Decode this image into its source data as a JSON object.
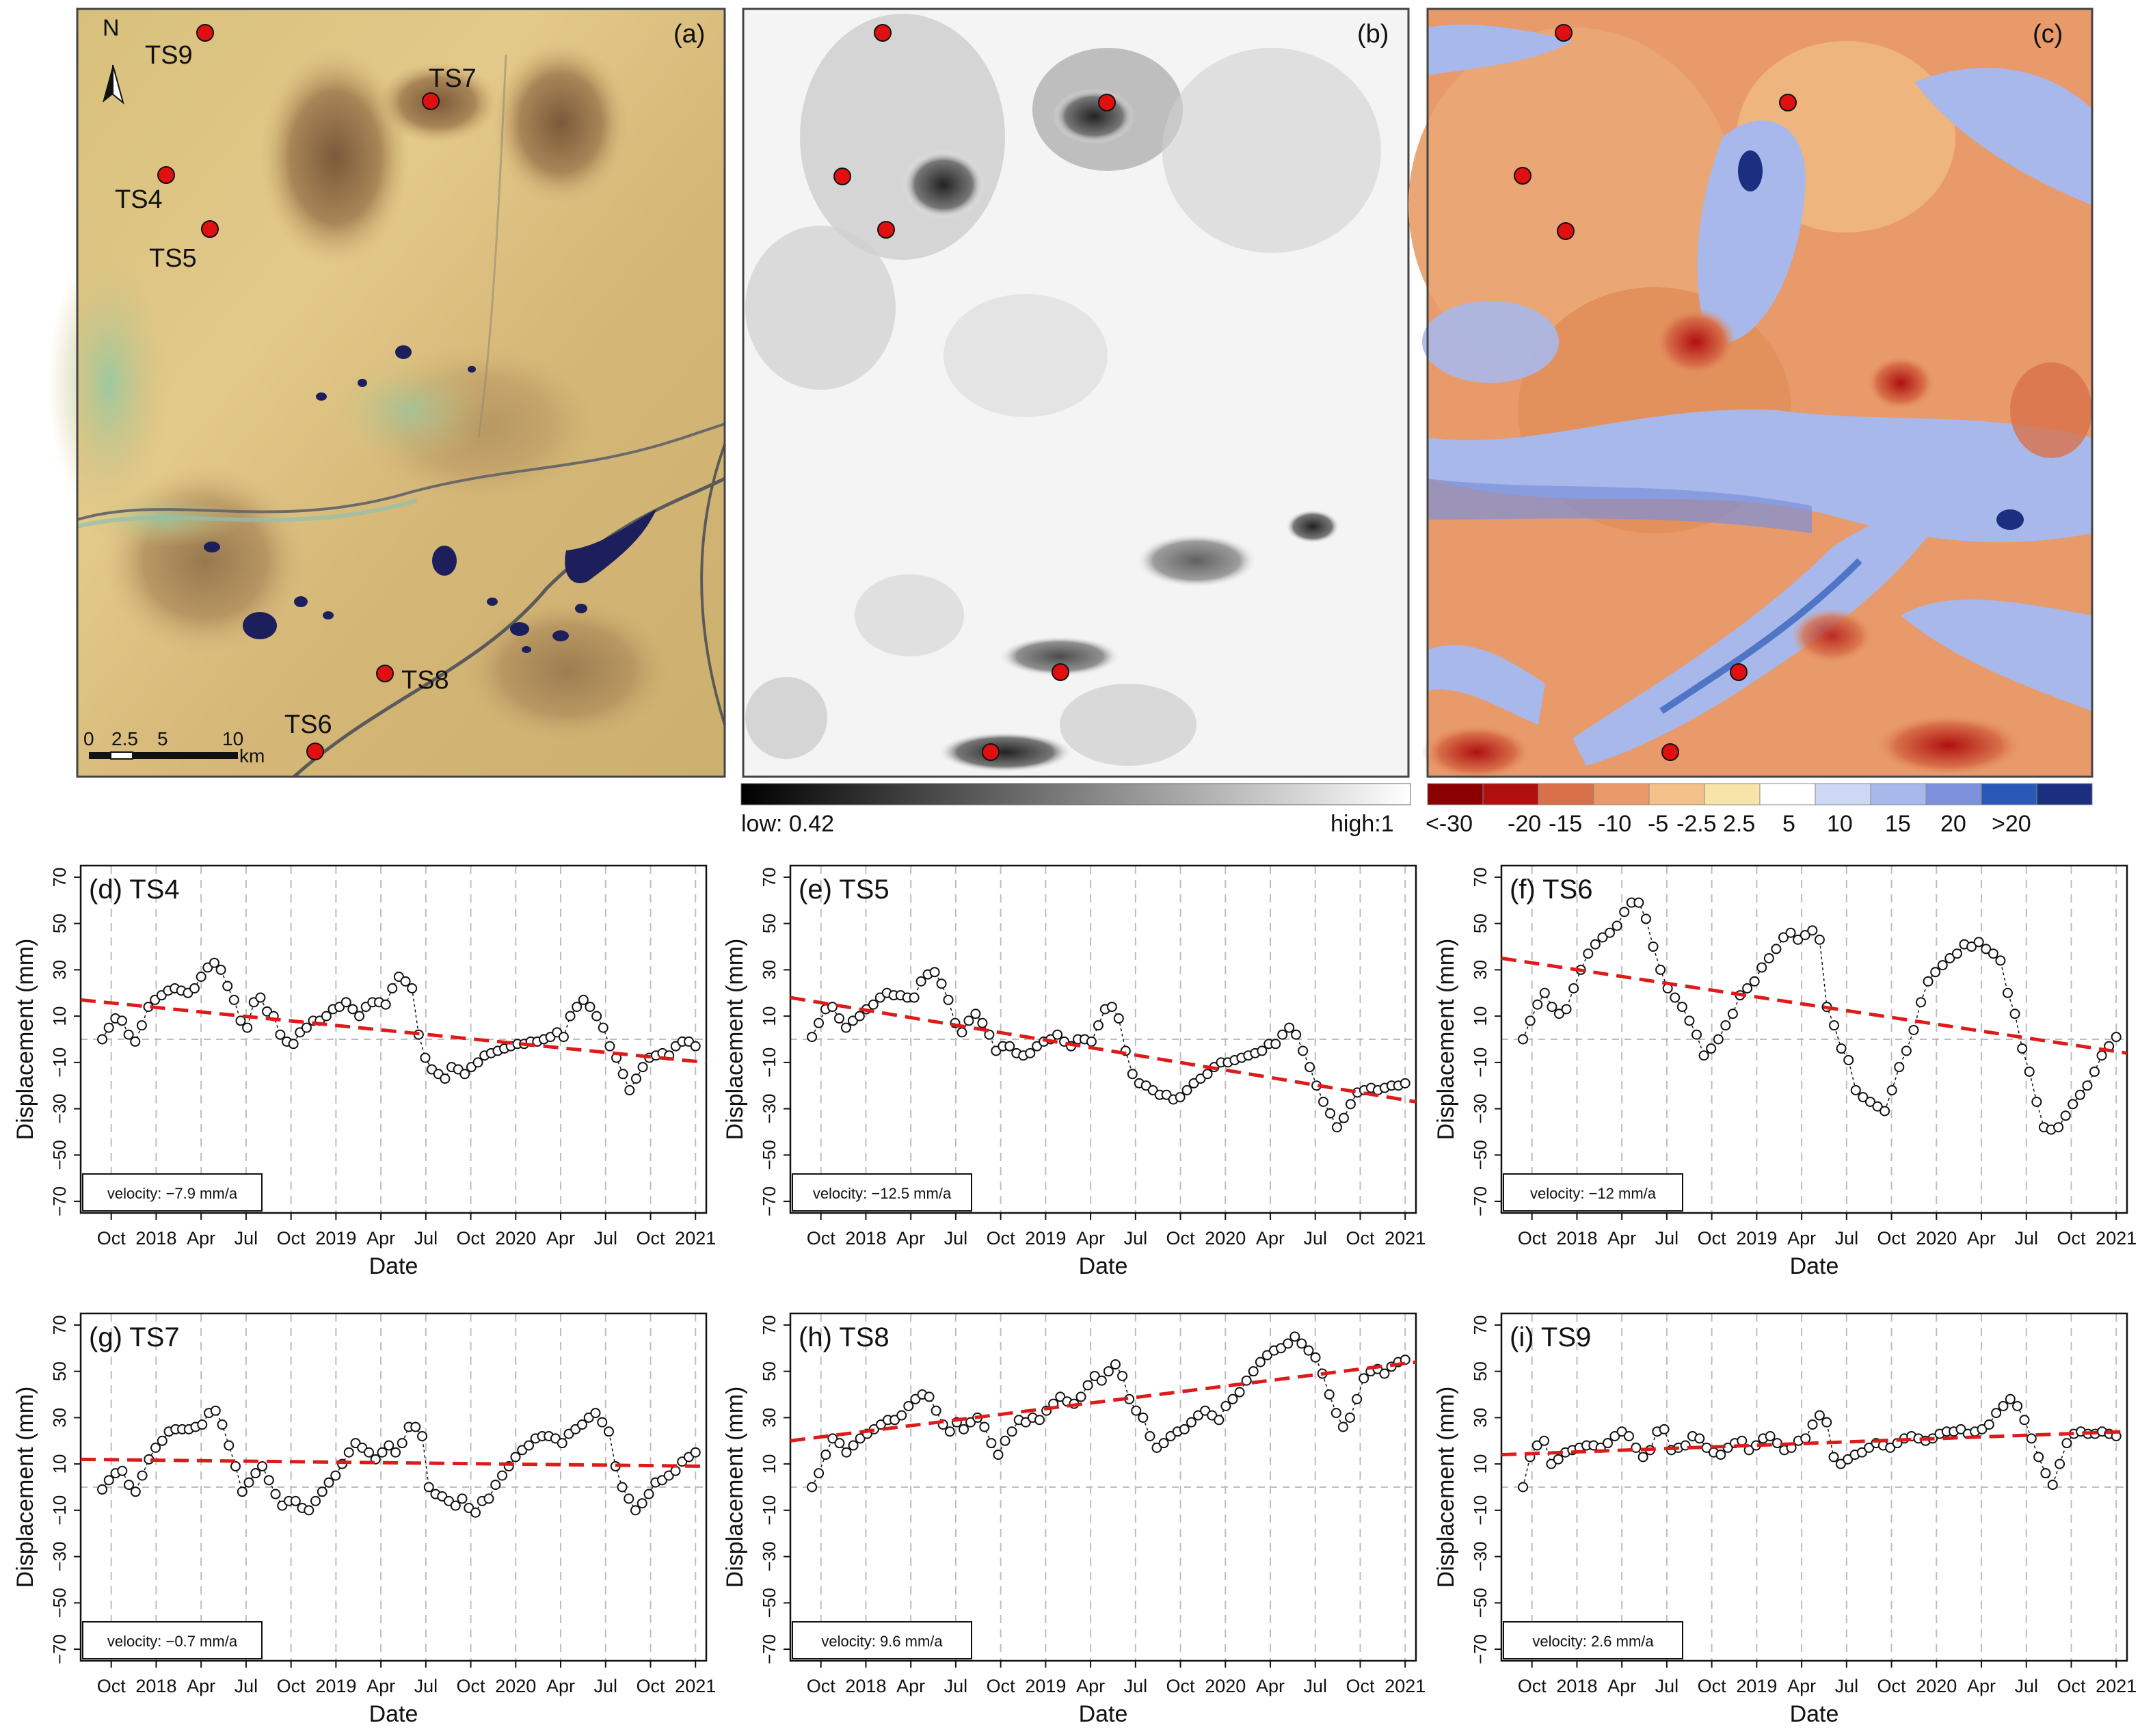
{
  "maps": {
    "a": {
      "label": "(a)",
      "north": "N",
      "scale_ticks": [
        "0",
        "2.5",
        "5",
        "10"
      ],
      "scale_unit": "km",
      "stations": [
        {
          "name": "TS9",
          "label": "TS9"
        },
        {
          "name": "TS7",
          "label": "TS7"
        },
        {
          "name": "TS4",
          "label": "TS4"
        },
        {
          "name": "TS5",
          "label": "TS5"
        },
        {
          "name": "TS8",
          "label": "TS8"
        },
        {
          "name": "TS6",
          "label": "TS6"
        }
      ]
    },
    "b": {
      "label": "(b)",
      "colorbar_low": "low: 0.42",
      "colorbar_high": "high:1"
    },
    "c": {
      "label": "(c)",
      "colorbar_labels": [
        "<-30",
        "-20",
        "-15",
        "-10",
        "-5",
        "-2.5",
        "2.5",
        "5",
        "10",
        "15",
        "20",
        ">20"
      ],
      "colorbar_colors": [
        "#8b0000",
        "#b01010",
        "#d8704a",
        "#e89a6a",
        "#f2c088",
        "#f8e4a8",
        "#ffffff",
        "#cdd8f4",
        "#a8b8ea",
        "#7c90dc",
        "#2a58b8",
        "#1a2f80"
      ]
    }
  },
  "colors": {
    "trend": "#dd1b1b",
    "marker": "#e01010",
    "water": "#1c1f5c"
  },
  "chart_data": [
    {
      "type": "scatter",
      "id": "d",
      "title": "(d) TS4",
      "velocity": "velocity: −7.9 mm/a",
      "xlabel": "Date",
      "ylabel": "Displacement (mm)",
      "x_ticks": [
        "Oct",
        "2018",
        "Apr",
        "Jul",
        "Oct",
        "2019",
        "Apr",
        "Jul",
        "Oct",
        "2020",
        "Apr",
        "Jul",
        "Oct",
        "2021"
      ],
      "y_ticks": [
        "70",
        "50",
        "30",
        "10",
        "−10",
        "−30",
        "−50",
        "−70"
      ],
      "ylim": [
        -75,
        75
      ],
      "xlim": [
        2017.58,
        2021.06
      ],
      "trend": {
        "y_start": 17,
        "y_end": -10
      },
      "values": [
        0,
        5,
        9,
        8,
        2,
        -1,
        6,
        14,
        17,
        19,
        21,
        22,
        21,
        20,
        22,
        27,
        31,
        33,
        30,
        23,
        17,
        8,
        5,
        16,
        18,
        12,
        10,
        2,
        -1,
        -2,
        3,
        5,
        8,
        8,
        10,
        13,
        14,
        16,
        13,
        10,
        14,
        16,
        16,
        15,
        22,
        27,
        25,
        22,
        2,
        -8,
        -13,
        -15,
        -17,
        -12,
        -13,
        -15,
        -12,
        -10,
        -7,
        -6,
        -5,
        -4,
        -3,
        -2,
        -2,
        -1,
        -1,
        0,
        1,
        3,
        1,
        10,
        14,
        17,
        14,
        10,
        5,
        -3,
        -8,
        -15,
        -22,
        -17,
        -12,
        -8,
        -7,
        -6,
        -7,
        -3,
        -1,
        -1,
        -3
      ]
    },
    {
      "type": "scatter",
      "id": "e",
      "title": "(e) TS5",
      "velocity": "velocity: −12.5 mm/a",
      "xlabel": "Date",
      "ylabel": "Displacement (mm)",
      "x_ticks": [
        "Oct",
        "2018",
        "Apr",
        "Jul",
        "Oct",
        "2019",
        "Apr",
        "Jul",
        "Oct",
        "2020",
        "Apr",
        "Jul",
        "Oct",
        "2021"
      ],
      "y_ticks": [
        "70",
        "50",
        "30",
        "10",
        "−10",
        "−30",
        "−50",
        "−70"
      ],
      "ylim": [
        -75,
        75
      ],
      "xlim": [
        2017.58,
        2021.06
      ],
      "trend": {
        "y_start": 18,
        "y_end": -27
      },
      "values": [
        1,
        7,
        13,
        14,
        9,
        5,
        8,
        10,
        13,
        15,
        18,
        20,
        19,
        19,
        18,
        18,
        25,
        28,
        29,
        24,
        17,
        7,
        3,
        8,
        11,
        7,
        2,
        -5,
        -3,
        -3,
        -6,
        -7,
        -6,
        -3,
        -1,
        0,
        2,
        -1,
        -3,
        0,
        0,
        -1,
        6,
        13,
        14,
        9,
        -5,
        -15,
        -19,
        -20,
        -22,
        -24,
        -24,
        -26,
        -25,
        -22,
        -19,
        -17,
        -15,
        -12,
        -10,
        -10,
        -9,
        -8,
        -7,
        -6,
        -5,
        -2,
        -2,
        2,
        5,
        2,
        -5,
        -12,
        -20,
        -27,
        -32,
        -38,
        -34,
        -28,
        -23,
        -22,
        -21,
        -22,
        -21,
        -20,
        -20,
        -19
      ]
    },
    {
      "type": "scatter",
      "id": "f",
      "title": "(f) TS6",
      "velocity": "velocity: −12 mm/a",
      "xlabel": "Date",
      "ylabel": "Displacement (mm)",
      "x_ticks": [
        "Oct",
        "2018",
        "Apr",
        "Jul",
        "Oct",
        "2019",
        "Apr",
        "Jul",
        "Oct",
        "2020",
        "Apr",
        "Jul",
        "Oct",
        "2021"
      ],
      "y_ticks": [
        "70",
        "50",
        "30",
        "10",
        "−10",
        "−30",
        "−50",
        "−70"
      ],
      "ylim": [
        -75,
        75
      ],
      "xlim": [
        2017.58,
        2021.06
      ],
      "trend": {
        "y_start": 35,
        "y_end": -6
      },
      "values": [
        0,
        8,
        15,
        20,
        14,
        11,
        13,
        22,
        30,
        37,
        41,
        44,
        46,
        49,
        55,
        59,
        59,
        52,
        40,
        30,
        22,
        18,
        14,
        8,
        2,
        -7,
        -4,
        0,
        6,
        11,
        19,
        22,
        25,
        31,
        35,
        39,
        44,
        46,
        43,
        45,
        47,
        43,
        14,
        6,
        -4,
        -9,
        -22,
        -25,
        -27,
        -29,
        -31,
        -22,
        -12,
        -5,
        4,
        16,
        25,
        29,
        32,
        35,
        37,
        41,
        40,
        42,
        39,
        37,
        34,
        20,
        11,
        -4,
        -14,
        -27,
        -38,
        -39,
        -38,
        -33,
        -28,
        -24,
        -20,
        -14,
        -7,
        -3,
        1
      ]
    },
    {
      "type": "scatter",
      "id": "g",
      "title": "(g) TS7",
      "velocity": "velocity: −0.7 mm/a",
      "xlabel": "Date",
      "ylabel": "Displacement (mm)",
      "x_ticks": [
        "Oct",
        "2018",
        "Apr",
        "Jul",
        "Oct",
        "2019",
        "Apr",
        "Jul",
        "Oct",
        "2020",
        "Apr",
        "Jul",
        "Oct",
        "2021"
      ],
      "y_ticks": [
        "70",
        "50",
        "30",
        "10",
        "−10",
        "−30",
        "−50",
        "−70"
      ],
      "ylim": [
        -75,
        75
      ],
      "xlim": [
        2017.58,
        2021.06
      ],
      "trend": {
        "y_start": 12,
        "y_end": 9
      },
      "values": [
        -1,
        3,
        6,
        7,
        1,
        -2,
        5,
        12,
        17,
        20,
        24,
        25,
        25,
        25,
        26,
        27,
        32,
        33,
        27,
        18,
        9,
        -2,
        2,
        6,
        9,
        3,
        -3,
        -8,
        -6,
        -6,
        -9,
        -10,
        -6,
        -2,
        2,
        5,
        10,
        15,
        19,
        17,
        15,
        12,
        15,
        18,
        15,
        19,
        26,
        26,
        22,
        0,
        -3,
        -4,
        -6,
        -8,
        -5,
        -9,
        -11,
        -6,
        -5,
        1,
        5,
        9,
        13,
        16,
        18,
        21,
        22,
        22,
        21,
        19,
        23,
        25,
        27,
        30,
        32,
        28,
        24,
        9,
        0,
        -5,
        -10,
        -7,
        -3,
        2,
        3,
        5,
        7,
        11,
        13,
        15
      ]
    },
    {
      "type": "scatter",
      "id": "h",
      "title": "(h) TS8",
      "velocity": "velocity: 9.6 mm/a",
      "xlabel": "Date",
      "ylabel": "Displacement (mm)",
      "x_ticks": [
        "Oct",
        "2018",
        "Apr",
        "Jul",
        "Oct",
        "2019",
        "Apr",
        "Jul",
        "Oct",
        "2020",
        "Apr",
        "Jul",
        "Oct",
        "2021"
      ],
      "y_ticks": [
        "70",
        "50",
        "30",
        "10",
        "−10",
        "−30",
        "−50",
        "−70"
      ],
      "ylim": [
        -75,
        75
      ],
      "xlim": [
        2017.58,
        2021.06
      ],
      "trend": {
        "y_start": 20,
        "y_end": 54
      },
      "values": [
        0,
        6,
        14,
        21,
        19,
        15,
        18,
        21,
        23,
        25,
        27,
        29,
        29,
        31,
        35,
        38,
        40,
        39,
        33,
        27,
        24,
        28,
        25,
        28,
        30,
        26,
        19,
        14,
        20,
        24,
        29,
        28,
        30,
        29,
        33,
        36,
        39,
        37,
        36,
        39,
        44,
        48,
        46,
        50,
        53,
        48,
        38,
        33,
        30,
        22,
        17,
        19,
        22,
        24,
        25,
        28,
        31,
        33,
        31,
        29,
        35,
        38,
        41,
        46,
        50,
        54,
        57,
        59,
        60,
        62,
        65,
        62,
        59,
        56,
        49,
        40,
        32,
        26,
        30,
        38,
        47,
        50,
        51,
        49,
        52,
        54,
        55
      ]
    },
    {
      "type": "scatter",
      "id": "i",
      "title": "(i) TS9",
      "velocity": "velocity: 2.6 mm/a",
      "xlabel": "Date",
      "ylabel": "Displacement (mm)",
      "x_ticks": [
        "Oct",
        "2018",
        "Apr",
        "Jul",
        "Oct",
        "2019",
        "Apr",
        "Jul",
        "Oct",
        "2020",
        "Apr",
        "Jul",
        "Oct",
        "2021"
      ],
      "y_ticks": [
        "70",
        "50",
        "30",
        "10",
        "−10",
        "−30",
        "−50",
        "−70"
      ],
      "ylim": [
        -75,
        75
      ],
      "xlim": [
        2017.58,
        2021.06
      ],
      "trend": {
        "y_start": 14,
        "y_end": 24
      },
      "values": [
        0,
        13,
        18,
        20,
        10,
        12,
        15,
        16,
        17,
        18,
        18,
        17,
        19,
        22,
        24,
        22,
        17,
        13,
        16,
        24,
        25,
        16,
        17,
        18,
        22,
        21,
        17,
        15,
        14,
        17,
        19,
        20,
        16,
        18,
        21,
        22,
        19,
        16,
        17,
        20,
        21,
        27,
        31,
        28,
        13,
        10,
        12,
        14,
        15,
        17,
        19,
        18,
        17,
        19,
        21,
        22,
        21,
        20,
        21,
        23,
        24,
        24,
        25,
        23,
        24,
        25,
        27,
        32,
        35,
        38,
        35,
        29,
        21,
        13,
        6,
        1,
        10,
        19,
        23,
        24,
        23,
        23,
        24,
        23,
        22
      ]
    }
  ]
}
